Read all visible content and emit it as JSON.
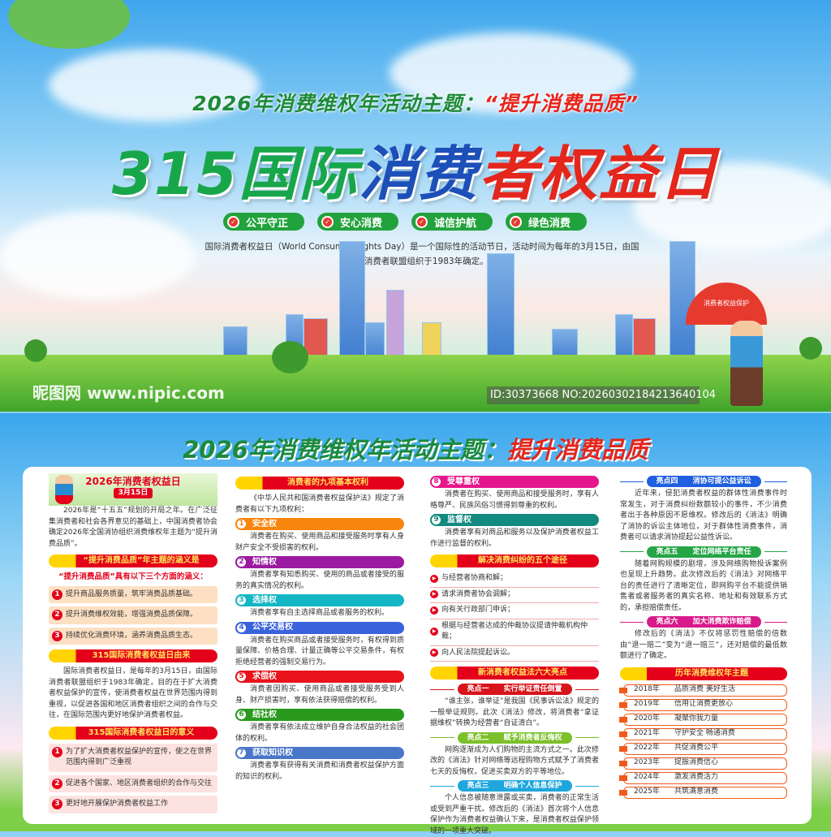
{
  "top": {
    "subtitle_prefix": "2026年消费维权年活动主题：",
    "subtitle_theme": "“提升消费品质”",
    "title_a": "315国际",
    "title_b": "消费",
    "title_c": "者权益日",
    "tags": [
      "公平守正",
      "安心消费",
      "诚信护航",
      "绿色消费"
    ],
    "tag_icon": "shield-check-icon",
    "intro": "国际消费者权益日（World Consumer Rights Day）是一个国际性的活动节日，活动时间为每年的3月15日，由国际消费者联盟组织于1983年确定。",
    "umbrella_text": "消费者权益保护"
  },
  "bottom": {
    "title_prefix": "2026年消费维权年活动主题：",
    "title_theme": "提升消费品质",
    "col1": {
      "header_title": "2026年消费者权益日",
      "header_date": "3月15日",
      "para1": "2026年是“十五五”规划的开局之年。在广泛征集消费者和社会各界意见的基础上，中国消费者协会确定2026年全国消协组织消费维权年主题为“提升消费品质”。",
      "banner1": "“提升消费品质”年主题的涵义是",
      "sub1": "“提升消费品质”具有以下三个方面的涵义：",
      "meanings": [
        "提升商品服务质量，筑牢消费品质基础。",
        "提升消费维权效能，增强消费品质保障。",
        "持续优化消费环境，涵养消费品质生态。"
      ],
      "banner2": "315国际消费者权益日由来",
      "para2": "国际消费者权益日，是每年的3月15日，由国际消费者联盟组织于1983年确定，目的在于扩大消费者权益保护的宣传，使消费者权益在世界范围内得到重视，以促进各国和地区消费者组织之间的合作与交往，在国际范围内更好地保护消费者权益。",
      "banner3": "315国际消费者权益日的意义",
      "significance": [
        "为了扩大消费者权益保护的宣传，使之在世界范围内得到广泛重视",
        "促进各个国家、地区消费者组织的合作与交往",
        "更好地开展保护消费者权益工作"
      ]
    },
    "col2": {
      "banner": "消费者的九项基本权利",
      "intro": "《中华人民共和国消费者权益保护法》规定了消费者有以下九项权利：",
      "rights": [
        {
          "num": "1",
          "title": "安全权",
          "text": "消费者在购买、使用商品和接受服务时享有人身财产安全不受损害的权利。",
          "color": "#f7860f"
        },
        {
          "num": "2",
          "title": "知情权",
          "text": "消费者享有知悉购买、使用的商品或者接受的服务的真实情况的权利。",
          "color": "#9b1aa0"
        },
        {
          "num": "3",
          "title": "选择权",
          "text": "消费者享有自主选择商品或者服务的权利。",
          "color": "#13b6c4"
        },
        {
          "num": "4",
          "title": "公平交易权",
          "text": "消费者在购买商品或者接受服务时，有权得到质量保障、价格合理、计量正确等公平交易条件，有权拒绝经营者的强制交易行为。",
          "color": "#3a62dc"
        },
        {
          "num": "5",
          "title": "求偿权",
          "text": "消费者因购买、使用商品或者接受服务受到人身、财产损害时，享有依法获得赔偿的权利。",
          "color": "#e8131b"
        },
        {
          "num": "6",
          "title": "结社权",
          "text": "消费者享有依法成立维护自身合法权益的社会团体的权利。",
          "color": "#2a9a1e"
        },
        {
          "num": "7",
          "title": "获取知识权",
          "text": "消费者享有获得有关消费和消费者权益保护方面的知识的权利。",
          "color": "#4a76c8"
        }
      ]
    },
    "col3": {
      "rights": [
        {
          "num": "8",
          "title": "受尊重权",
          "text": "消费者在购买、使用商品和接受服务时，享有人格尊严、民族风俗习惯得到尊重的权利。",
          "color": "#e6168c"
        },
        {
          "num": "9",
          "title": "监督权",
          "text": "消费者享有对商品和服务以及保护消费者权益工作进行监督的权利。",
          "color": "#128a80"
        }
      ],
      "banner_ways": "解决消费纠纷的五个途径",
      "ways": [
        "与经营者协商和解；",
        "请求消费者协会调解；",
        "向有关行政部门申诉；",
        "根据与经营者达成的仲裁协议提请仲裁机构仲裁；",
        "向人民法院提起诉讼。"
      ],
      "banner_highlights": "新消费者权益法六大亮点",
      "highlights": [
        {
          "label": "亮点一　　实行举证责任倒置",
          "text": "“谁主张，谁举证”是我国《民事诉讼法》规定的一般举证规则。此次《消法》修改，将消费者“拿证据维权”转换为经营者“自证清白”。",
          "color": "#d8141b"
        },
        {
          "label": "亮点二　　赋予消费者反悔权",
          "text": "网购逐渐成为人们购物的主流方式之一。此次修改的《消法》针对网络等远程购物方式赋予了消费者七天的反悔权，促进买卖双方的平等地位。",
          "color": "#7cc02a"
        },
        {
          "label": "亮点三　　明确个人信息保护",
          "text": "个人信息被随意泄露或买卖，消费者的正常生活或受到严重干扰。修改后的《消法》首次将个人信息保护作为消费者权益确认下来，是消费者权益保护领域的一项重大突破。",
          "color": "#1fa6dd"
        }
      ]
    },
    "col4": {
      "highlights": [
        {
          "label": "亮点四　　消协可提公益诉讼",
          "text": "近年来，侵犯消费者权益的群体性消费事件时常发生，对于消费纠纷数额较小的事件，不少消费者出于各种原因不愿维权。修改后的《消法》明确了消协的诉讼主体地位，对于群体性消费事件，消费者可以请求消协提起公益性诉讼。",
          "color": "#1f5fe0"
        },
        {
          "label": "亮点五　　定位网络平台责任",
          "text": "随着网购规模的剧增，涉及网络购物投诉案例也呈现上升趋势。此次修改后的《消法》对网络平台的责任进行了清晰定位，即网购平台不能提供销售者或者服务者的真实名称、地址和有效联系方式的，承担赔偿责任。",
          "color": "#25a546"
        },
        {
          "label": "亮点六　　加大消费欺诈赔偿",
          "text": "修改后的《消法》不仅将惩罚性赔偿的倍数由“退一赔二”变为“退一赔三”，还对赔偿的最低数额进行了确定。",
          "color": "#d81a8a"
        }
      ],
      "banner_years": "历年消费维权年主题",
      "years": [
        {
          "year": "2018年",
          "theme": "品质消费 美好生活"
        },
        {
          "year": "2019年",
          "theme": "信用让消费更放心"
        },
        {
          "year": "2020年",
          "theme": "凝聚你我力量"
        },
        {
          "year": "2021年",
          "theme": "守护安全 畅通消费"
        },
        {
          "year": "2022年",
          "theme": "共促消费公平"
        },
        {
          "year": "2023年",
          "theme": "提振消费信心"
        },
        {
          "year": "2024年",
          "theme": "激发消费活力"
        },
        {
          "year": "2025年",
          "theme": "共筑满意消费"
        }
      ]
    }
  },
  "watermark": {
    "site": "昵图网 www.nipic.com",
    "id": "ID:30373668 NO:20260302184213640104"
  }
}
